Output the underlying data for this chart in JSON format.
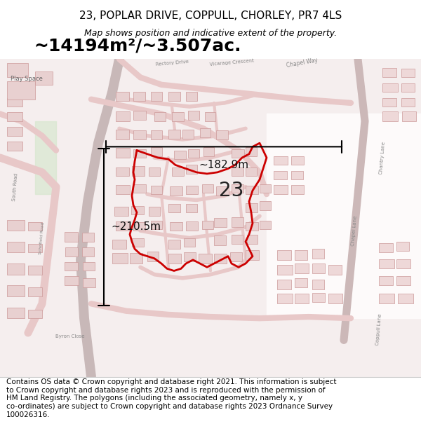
{
  "title": "23, POPLAR DRIVE, COPPULL, CHORLEY, PR7 4LS",
  "subtitle": "Map shows position and indicative extent of the property.",
  "area_text": "~14194m²/~3.507ac.",
  "label_number": "23",
  "dim_horizontal": "~182.9m",
  "dim_vertical": "~210.5m",
  "footer_line1": "Contains OS data © Crown copyright and database right 2021. This information is subject",
  "footer_line2": "to Crown copyright and database rights 2023 and is reproduced with the permission of",
  "footer_line3": "HM Land Registry. The polygons (including the associated geometry, namely x, y",
  "footer_line4": "co-ordinates) are subject to Crown copyright and database rights 2023 Ordnance Survey",
  "footer_line5": "100026316.",
  "bg_color": "#f5f0f0",
  "map_bg": "#f5eeee",
  "road_color": "#e8c8c8",
  "highlight_color": "#cc0000",
  "title_fontsize": 11,
  "subtitle_fontsize": 9,
  "area_fontsize": 18,
  "label_fontsize": 20,
  "dim_fontsize": 11,
  "footer_fontsize": 7.5
}
